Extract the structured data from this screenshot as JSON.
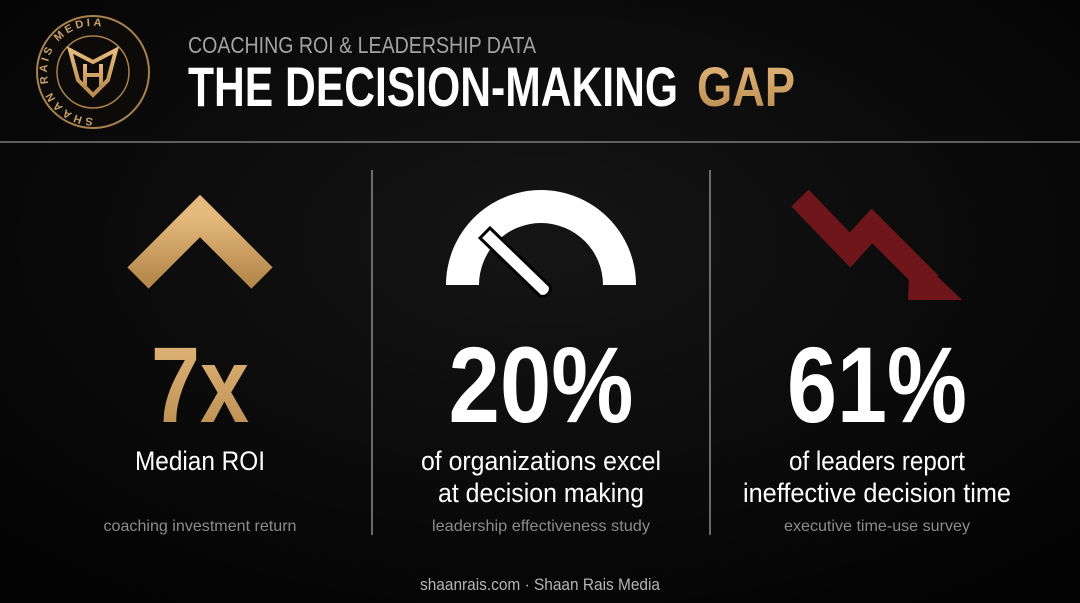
{
  "header": {
    "logo_text": "SHAAN RAIS MEDIA",
    "subtitle": "COACHING ROI & LEADERSHIP DATA",
    "title_main": "THE DECISION-MAKING",
    "title_accent": "GAP"
  },
  "stats": [
    {
      "value": "7x",
      "label": [
        "Median ROI"
      ],
      "source": "coaching investment return"
    },
    {
      "value": "20%",
      "label": [
        "of organizations excel",
        "at decision making"
      ],
      "source": "leadership effectiveness study"
    },
    {
      "value": "61%",
      "label": [
        "of leaders report",
        "ineffective decision time"
      ],
      "source": "executive time-use survey"
    }
  ],
  "footer": "shaanrais.com · Shaan Rais Media"
}
